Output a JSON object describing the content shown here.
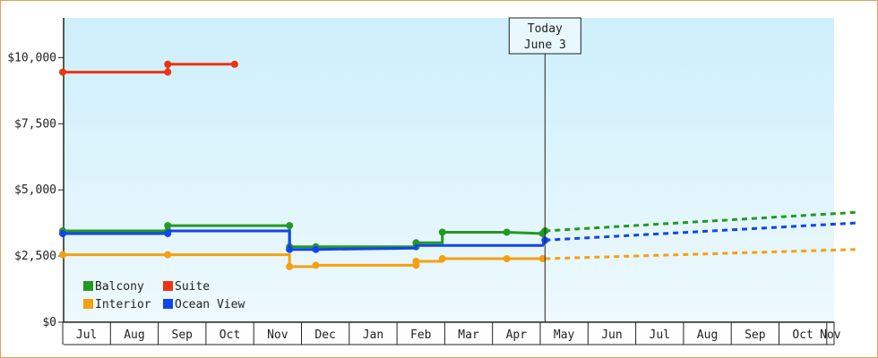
{
  "chart_data": {
    "type": "line",
    "title": "",
    "xlabel": "",
    "ylabel": "",
    "ylim": [
      0,
      11500
    ],
    "y_ticks": [
      {
        "value": 0,
        "label": "$0"
      },
      {
        "value": 2500,
        "label": "$2,500"
      },
      {
        "value": 5000,
        "label": "$5,000"
      },
      {
        "value": 7500,
        "label": "$7,500"
      },
      {
        "value": 10000,
        "label": "$10,000"
      }
    ],
    "x_months": [
      "Jul",
      "Aug",
      "Sep",
      "Oct",
      "Nov",
      "Dec",
      "Jan",
      "Feb",
      "Mar",
      "Apr",
      "May",
      "Jun",
      "Jul",
      "Aug",
      "Sep",
      "Oct",
      "Nov"
    ],
    "x_range": [
      0,
      16.6
    ],
    "grid": false,
    "legend_position": "bottom-left",
    "today": {
      "line1": "Today",
      "line2": "June 3",
      "x": 10.1
    },
    "series": [
      {
        "name": "Balcony",
        "color": "#229922",
        "step_points": [
          [
            0,
            3450
          ],
          [
            2.2,
            3450
          ],
          [
            2.2,
            3650
          ],
          [
            4.75,
            3650
          ],
          [
            4.75,
            2850
          ],
          [
            5.3,
            2850
          ],
          [
            7.4,
            2850
          ],
          [
            7.4,
            3000
          ],
          [
            7.95,
            3000
          ],
          [
            7.95,
            3400
          ],
          [
            9.3,
            3400
          ],
          [
            10.05,
            3350
          ],
          [
            10.1,
            3450
          ]
        ],
        "markers": [
          [
            0,
            3450
          ],
          [
            2.2,
            3450
          ],
          [
            2.2,
            3650
          ],
          [
            4.75,
            3650
          ],
          [
            4.75,
            2850
          ],
          [
            5.3,
            2850
          ],
          [
            7.4,
            2850
          ],
          [
            7.4,
            3000
          ],
          [
            7.95,
            3400
          ],
          [
            9.3,
            3400
          ],
          [
            10.05,
            3350
          ],
          [
            10.1,
            3450
          ]
        ],
        "forecast": [
          [
            10.1,
            3450
          ],
          [
            16.6,
            4150
          ]
        ]
      },
      {
        "name": "Interior",
        "color": "#f5a010",
        "step_points": [
          [
            0,
            2550
          ],
          [
            2.2,
            2550
          ],
          [
            4.75,
            2550
          ],
          [
            4.75,
            2100
          ],
          [
            5.3,
            2100
          ],
          [
            5.3,
            2150
          ],
          [
            7.4,
            2150
          ],
          [
            7.4,
            2300
          ],
          [
            7.95,
            2300
          ],
          [
            7.95,
            2400
          ],
          [
            9.3,
            2400
          ],
          [
            10.1,
            2400
          ]
        ],
        "markers": [
          [
            0,
            2550
          ],
          [
            2.2,
            2550
          ],
          [
            4.75,
            2100
          ],
          [
            5.3,
            2150
          ],
          [
            7.4,
            2150
          ],
          [
            7.4,
            2300
          ],
          [
            7.95,
            2400
          ],
          [
            9.3,
            2400
          ],
          [
            10.05,
            2400
          ]
        ],
        "forecast": [
          [
            10.1,
            2400
          ],
          [
            16.6,
            2750
          ]
        ]
      },
      {
        "name": "Suite",
        "color": "#ee3311",
        "step_points": [
          [
            0,
            9450
          ],
          [
            2.2,
            9450
          ],
          [
            2.2,
            9750
          ],
          [
            3.6,
            9750
          ]
        ],
        "markers": [
          [
            0,
            9450
          ],
          [
            2.2,
            9450
          ],
          [
            2.2,
            9750
          ],
          [
            3.6,
            9750
          ]
        ],
        "forecast": []
      },
      {
        "name": "Ocean View",
        "color": "#1144ee",
        "step_points": [
          [
            0,
            3350
          ],
          [
            2.2,
            3350
          ],
          [
            2.2,
            3450
          ],
          [
            4.75,
            3450
          ],
          [
            4.75,
            2750
          ],
          [
            5.3,
            2750
          ],
          [
            7.4,
            2800
          ],
          [
            7.4,
            2900
          ],
          [
            10.05,
            2900
          ],
          [
            10.1,
            3100
          ]
        ],
        "markers": [
          [
            0,
            3350
          ],
          [
            2.2,
            3350
          ],
          [
            4.75,
            2750
          ],
          [
            5.3,
            2750
          ],
          [
            10.1,
            3100
          ]
        ],
        "forecast": [
          [
            10.1,
            3100
          ],
          [
            16.6,
            3750
          ]
        ]
      }
    ]
  },
  "legend": {
    "items": [
      {
        "label": "Balcony",
        "color": "#229922"
      },
      {
        "label": "Suite",
        "color": "#ee3311"
      },
      {
        "label": "Interior",
        "color": "#f5a010"
      },
      {
        "label": "Ocean View",
        "color": "#1144ee"
      }
    ]
  }
}
